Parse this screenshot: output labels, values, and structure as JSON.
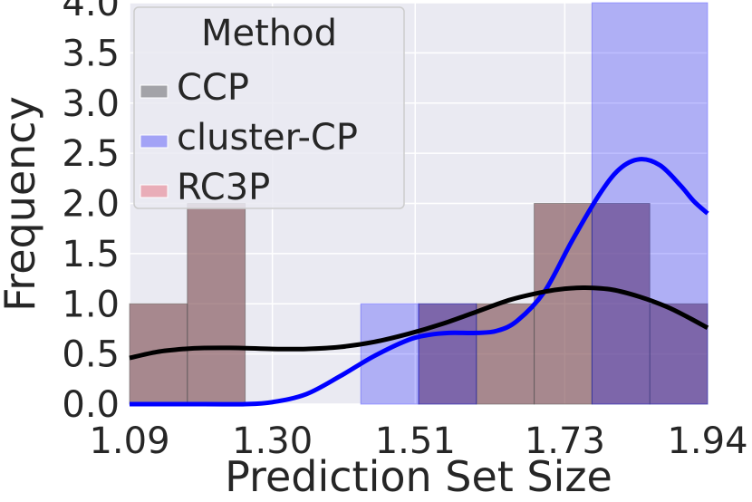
{
  "chart_data": {
    "type": "histogram",
    "title": "",
    "xlabel": "Prediction Set Size",
    "ylabel": "Frequency",
    "xlim": [
      1.09,
      1.94
    ],
    "ylim": [
      0.0,
      4.0
    ],
    "x_ticks": [
      "1.09",
      "1.30",
      "1.51",
      "1.73",
      "1.94"
    ],
    "y_ticks": [
      "0.0",
      "0.5",
      "1.0",
      "1.5",
      "2.0",
      "2.5",
      "3.0",
      "3.5",
      "4.0"
    ],
    "grid": true,
    "legend": {
      "title": "Method",
      "placement": "top-left",
      "entries": [
        "CCP",
        "cluster-CP",
        "RC3P"
      ]
    },
    "colors": {
      "background": "#eaeaf2",
      "grid": "#ffffff",
      "CCP": "#4d4d4d",
      "cluster-CP": "#0000ff",
      "RC3P": "#e8707e",
      "overlap": "#7f4f6d",
      "ccp_kde": "#000000",
      "cluster_kde": "#0000ff"
    },
    "histograms": [
      {
        "name": "CCP/RC3P",
        "bins": [
          {
            "x0": 1.09,
            "x1": 1.175,
            "count": 1
          },
          {
            "x0": 1.175,
            "x1": 1.26,
            "count": 2
          },
          {
            "x0": 1.515,
            "x1": 1.6,
            "count": 1
          },
          {
            "x0": 1.6,
            "x1": 1.685,
            "count": 1
          },
          {
            "x0": 1.685,
            "x1": 1.77,
            "count": 2
          },
          {
            "x0": 1.77,
            "x1": 1.855,
            "count": 2
          },
          {
            "x0": 1.855,
            "x1": 1.94,
            "count": 1
          }
        ]
      },
      {
        "name": "cluster-CP",
        "bins": [
          {
            "x0": 1.43,
            "x1": 1.515,
            "count": 1
          },
          {
            "x0": 1.515,
            "x1": 1.6,
            "count": 1
          },
          {
            "x0": 1.77,
            "x1": 1.94,
            "count": 4
          }
        ]
      }
    ],
    "kde": [
      {
        "name": "CCP",
        "x": [
          1.09,
          1.13,
          1.17,
          1.2,
          1.25,
          1.3,
          1.35,
          1.4,
          1.45,
          1.5,
          1.55,
          1.6,
          1.65,
          1.7,
          1.73,
          1.76,
          1.8,
          1.84,
          1.88,
          1.91,
          1.94
        ],
        "y": [
          0.46,
          0.52,
          0.55,
          0.56,
          0.56,
          0.55,
          0.55,
          0.57,
          0.62,
          0.7,
          0.8,
          0.92,
          1.04,
          1.12,
          1.15,
          1.16,
          1.14,
          1.07,
          0.97,
          0.87,
          0.76
        ]
      },
      {
        "name": "cluster-CP",
        "x": [
          1.09,
          1.2,
          1.26,
          1.3,
          1.35,
          1.4,
          1.45,
          1.5,
          1.53,
          1.56,
          1.6,
          1.63,
          1.66,
          1.7,
          1.74,
          1.78,
          1.81,
          1.84,
          1.87,
          1.9,
          1.92,
          1.94
        ],
        "y": [
          0.0,
          0.0,
          0.0,
          0.02,
          0.1,
          0.28,
          0.48,
          0.64,
          0.69,
          0.71,
          0.71,
          0.73,
          0.83,
          1.12,
          1.62,
          2.08,
          2.34,
          2.44,
          2.38,
          2.18,
          2.02,
          1.9
        ]
      }
    ]
  }
}
